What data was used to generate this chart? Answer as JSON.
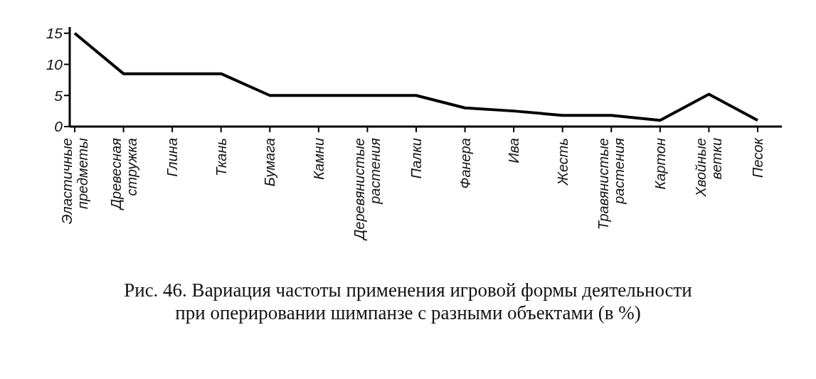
{
  "chart_data": {
    "type": "line",
    "title": "Рис. 46. Вариация частоты применения игровой формы деятельности при оперировании шимпанзе с разными объектами (в %)",
    "categories": [
      "Эластичные предметы",
      "Древесная стружка",
      "Глина",
      "Ткань",
      "Бумага",
      "Камни",
      "Деревянистые растения",
      "Палки",
      "Фанера",
      "Ива",
      "Жесть",
      "Травянистые растения",
      "Картон",
      "Хвойные ветки",
      "Песок"
    ],
    "values": [
      15,
      8.5,
      8.5,
      8.5,
      5,
      5,
      5,
      5,
      3,
      2.5,
      1.8,
      1.8,
      1,
      5.2,
      1
    ],
    "color": "#000000",
    "ylim": [
      0,
      16
    ],
    "yticks": [
      0,
      5,
      10,
      15
    ],
    "grid": false,
    "legend": false,
    "marker": "none",
    "line_style": "solid"
  }
}
